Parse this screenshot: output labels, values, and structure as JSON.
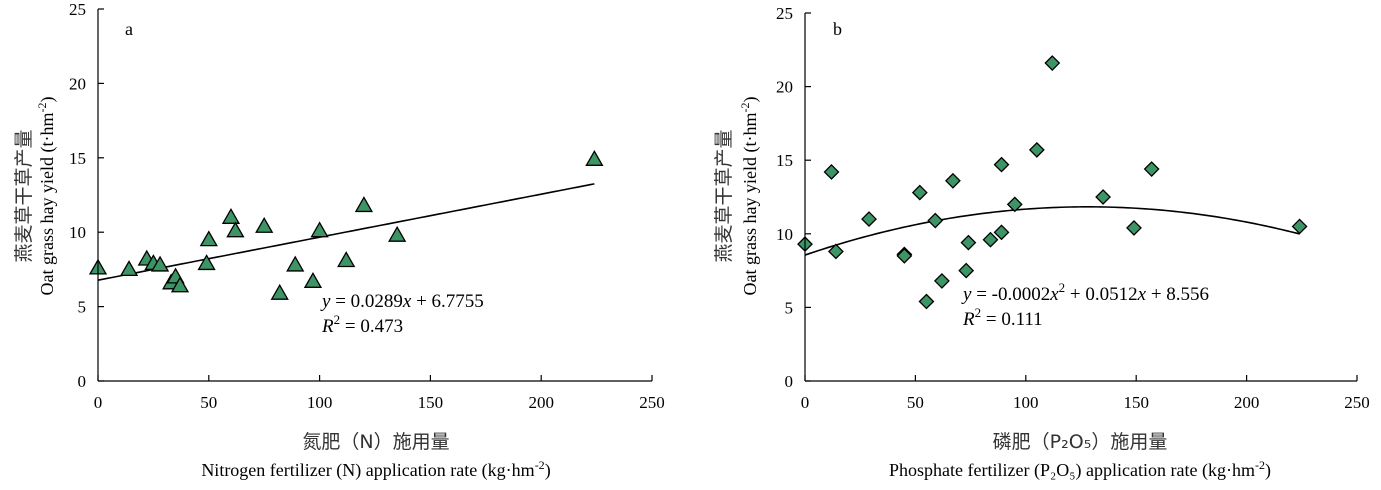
{
  "chart_data": [
    {
      "type": "scatter",
      "panel_label": "a",
      "marker": "triangle",
      "marker_color": "#3d9464",
      "marker_edge": "#000000",
      "xlim": [
        0,
        250
      ],
      "ylim": [
        0,
        25
      ],
      "x_ticks": [
        "0",
        "50",
        "100",
        "150",
        "200",
        "250"
      ],
      "y_ticks": [
        "0",
        "5",
        "10",
        "15",
        "20",
        "25"
      ],
      "xlabel_zh": "氮肥（N）施用量",
      "xlabel_en": "Nitrogen fertilizer (N) application rate (kg·hm",
      "xlabel_en_sup": "-2",
      "xlabel_en_end": ")",
      "ylabel_zh": "燕麦草干草产量",
      "ylabel_en": "Oat grass hay yield (t·hm",
      "ylabel_en_sup": "-2",
      "ylabel_en_end": ")",
      "equation": "y = 0.0289x + 6.7755",
      "r2": "R2 = 0.473",
      "eq_y_var": "y",
      "eq_mid": " = 0.0289",
      "eq_x_var": "x",
      "eq_end": " + 6.7755",
      "r2_var": "R",
      "r2_sup": "2",
      "r2_val": " = 0.473",
      "fit": {
        "kind": "linear",
        "a": 0.0289,
        "b": 6.7755,
        "x_range": [
          0,
          224
        ]
      },
      "points": [
        {
          "x": 0,
          "y": 7.6
        },
        {
          "x": 14,
          "y": 7.5
        },
        {
          "x": 22,
          "y": 8.2
        },
        {
          "x": 25,
          "y": 7.9
        },
        {
          "x": 28,
          "y": 7.8
        },
        {
          "x": 33,
          "y": 6.6
        },
        {
          "x": 35,
          "y": 7.0
        },
        {
          "x": 37,
          "y": 6.4
        },
        {
          "x": 49,
          "y": 7.9
        },
        {
          "x": 50,
          "y": 9.5
        },
        {
          "x": 60,
          "y": 11.0
        },
        {
          "x": 62,
          "y": 10.1
        },
        {
          "x": 75,
          "y": 10.4
        },
        {
          "x": 82,
          "y": 5.9
        },
        {
          "x": 89,
          "y": 7.8
        },
        {
          "x": 97,
          "y": 6.7
        },
        {
          "x": 100,
          "y": 10.1
        },
        {
          "x": 112,
          "y": 8.1
        },
        {
          "x": 120,
          "y": 11.8
        },
        {
          "x": 135,
          "y": 9.8
        },
        {
          "x": 224,
          "y": 14.9
        }
      ]
    },
    {
      "type": "scatter",
      "panel_label": "b",
      "marker": "diamond",
      "marker_color": "#3d9464",
      "marker_edge": "#000000",
      "xlim": [
        0,
        250
      ],
      "ylim": [
        0,
        25
      ],
      "x_ticks": [
        "0",
        "50",
        "100",
        "150",
        "200",
        "250"
      ],
      "y_ticks": [
        "0",
        "5",
        "10",
        "15",
        "20",
        "25"
      ],
      "xlabel_zh": "磷肥（P₂O₅）施用量",
      "xlabel_en": "Phosphate fertilizer (P₂O₅)  application rate (kg·hm",
      "xlabel_en_sup": "-2",
      "xlabel_en_end": ")",
      "ylabel_zh": "燕麦草干草产量",
      "ylabel_en": "Oat grass hay yield (t·hm",
      "ylabel_en_sup": "-2",
      "ylabel_en_end": ")",
      "equation": "y = -0.0002x2 + 0.0512x + 8.556",
      "r2": "R2 = 0.111",
      "eq_y_var": "y",
      "eq_mid": " = -0.0002",
      "eq_x_var": "x",
      "eq_x_sup": "2",
      "eq_mid2": " + 0.0512",
      "eq_x_var2": "x",
      "eq_end": " + 8.556",
      "r2_var": "R",
      "r2_sup": "2",
      "r2_val": " = 0.111",
      "fit": {
        "kind": "quadratic",
        "a": -0.0002,
        "b": 0.0512,
        "c": 8.556,
        "x_range": [
          0,
          224
        ]
      },
      "points": [
        {
          "x": 0,
          "y": 9.3
        },
        {
          "x": 12,
          "y": 14.2
        },
        {
          "x": 14,
          "y": 8.8
        },
        {
          "x": 29,
          "y": 11.0
        },
        {
          "x": 45,
          "y": 8.6
        },
        {
          "x": 45,
          "y": 8.5
        },
        {
          "x": 52,
          "y": 12.8
        },
        {
          "x": 55,
          "y": 5.4
        },
        {
          "x": 59,
          "y": 10.9
        },
        {
          "x": 62,
          "y": 6.8
        },
        {
          "x": 67,
          "y": 13.6
        },
        {
          "x": 73,
          "y": 7.5
        },
        {
          "x": 74,
          "y": 9.4
        },
        {
          "x": 84,
          "y": 9.6
        },
        {
          "x": 89,
          "y": 14.7
        },
        {
          "x": 89,
          "y": 10.1
        },
        {
          "x": 95,
          "y": 12.0
        },
        {
          "x": 105,
          "y": 15.7
        },
        {
          "x": 112,
          "y": 21.6
        },
        {
          "x": 135,
          "y": 12.5
        },
        {
          "x": 149,
          "y": 10.4
        },
        {
          "x": 157,
          "y": 14.4
        },
        {
          "x": 224,
          "y": 10.5
        }
      ]
    }
  ]
}
